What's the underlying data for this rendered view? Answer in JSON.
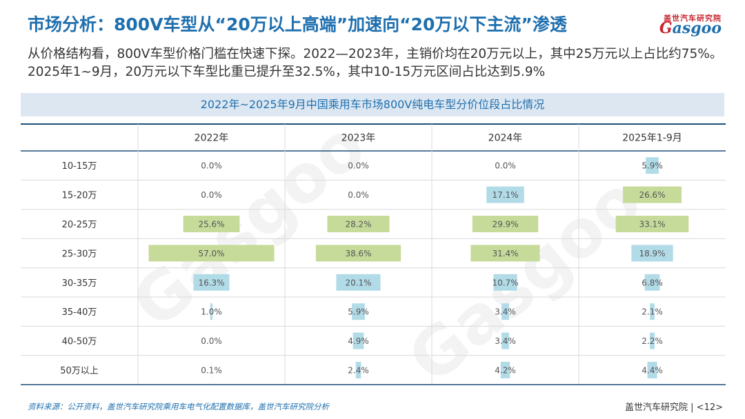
{
  "header": {
    "title": "市场分析：800V车型从“20万以上高端”加速向“20万以下主流”渗透",
    "logo_cn": "盖世汽车研究院",
    "logo_en_prefix": "G",
    "logo_en_rest": "asgoo"
  },
  "summary": "从价格结构看，800V车型价格门槛在快速下探。2022—2023年，主销价均在20万元以上，其中25万元以上占比约75%。2025年1~9月，20万元以下车型比重已提升至32.5%，其中10-15万元区间占比达到5.9%",
  "colors": {
    "green": "#c6db9a",
    "blue": "#b2dbe8",
    "title": "#1e6fae",
    "band": "#dde7f2"
  },
  "watermark": {
    "text_en": "Gasgoo",
    "text_cn": "盖世汽车研究院"
  },
  "chart_data": {
    "type": "table",
    "title": "2022年~2025年9月中国乘用车市场800V纯电车型分价位段占比情况",
    "columns": [
      "2022年",
      "2023年",
      "2024年",
      "2025年1-9月"
    ],
    "rows": [
      "10-15万",
      "15-20万",
      "20-25万",
      "25-30万",
      "30-35万",
      "35-40万",
      "40-50万",
      "50万以上"
    ],
    "values": [
      [
        0.0,
        0.0,
        0.0,
        5.9
      ],
      [
        0.0,
        0.0,
        17.1,
        26.6
      ],
      [
        25.6,
        28.2,
        29.9,
        33.1
      ],
      [
        57.0,
        38.6,
        31.4,
        18.9
      ],
      [
        16.3,
        20.1,
        10.7,
        6.8
      ],
      [
        1.0,
        5.9,
        3.4,
        2.1
      ],
      [
        0.0,
        4.9,
        3.4,
        2.2
      ],
      [
        0.1,
        2.4,
        4.2,
        4.4
      ]
    ],
    "labels": [
      [
        "0.0%",
        "0.0%",
        "0.0%",
        "5.9%"
      ],
      [
        "0.0%",
        "0.0%",
        "17.1%",
        "26.6%"
      ],
      [
        "25.6%",
        "28.2%",
        "29.9%",
        "33.1%"
      ],
      [
        "57.0%",
        "38.6%",
        "31.4%",
        "18.9%"
      ],
      [
        "16.3%",
        "20.1%",
        "10.7%",
        "6.8%"
      ],
      [
        "1.0%",
        "5.9%",
        "3.4%",
        "2.1%"
      ],
      [
        "0.0%",
        "4.9%",
        "3.4%",
        "2.2%"
      ],
      [
        "0.1%",
        "2.4%",
        "4.2%",
        "4.4%"
      ]
    ],
    "bar_color": [
      [
        "blue",
        "blue",
        "blue",
        "blue"
      ],
      [
        "blue",
        "blue",
        "blue",
        "green"
      ],
      [
        "green",
        "green",
        "green",
        "green"
      ],
      [
        "green",
        "green",
        "green",
        "blue"
      ],
      [
        "blue",
        "blue",
        "blue",
        "blue"
      ],
      [
        "blue",
        "blue",
        "blue",
        "blue"
      ],
      [
        "blue",
        "blue",
        "blue",
        "blue"
      ],
      [
        "blue",
        "blue",
        "blue",
        "blue"
      ]
    ],
    "max_value": 57.0
  },
  "footer": {
    "source": "资料来源：公开资料，盖世汽车研究院乘用车电气化配置数据库，盖世汽车研究院分析",
    "brand": "盖世汽车研究院",
    "page": "<12>"
  }
}
